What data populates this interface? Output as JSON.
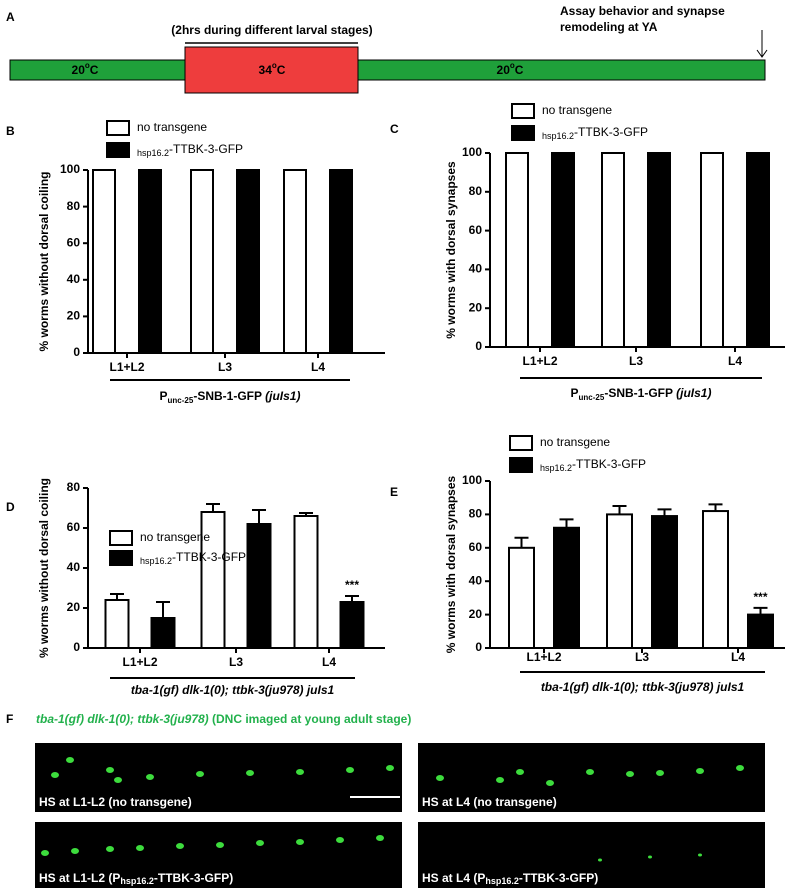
{
  "panel_labels": [
    "A",
    "B",
    "C",
    "D",
    "E",
    "F"
  ],
  "timeline": {
    "note": "(2hrs during different larval stages)",
    "assay": [
      "Assay behavior and synapse",
      "remodeling at YA"
    ],
    "segments": [
      {
        "number": "20",
        "degree": "o",
        "unit": "C",
        "color": "#1fa03a"
      },
      {
        "number": "34",
        "degree": "o",
        "unit": "C",
        "color": "#ee3d3d"
      },
      {
        "number": "20",
        "degree": "o",
        "unit": "C",
        "color": "#1fa03a"
      }
    ]
  },
  "chart_data": [
    {
      "type": "bar",
      "ylabel": "% worms without dorsal coiling",
      "categories": [
        "L1+L2",
        "L3",
        "L4"
      ],
      "series": [
        {
          "name": "no transgene",
          "color": "#ffffff",
          "values": [
            100,
            100,
            100
          ]
        },
        {
          "name": "-TTBK-3-GFP",
          "subscript": "hsp16.2",
          "color": "#000000",
          "values": [
            100,
            100,
            100
          ]
        }
      ],
      "ylim": [
        0,
        100
      ],
      "yticks": [
        0,
        20,
        40,
        60,
        80,
        100
      ],
      "group_label": [
        {
          "text": "P"
        },
        {
          "text": "unc-25",
          "sub": true
        },
        {
          "text": "-SNB-1-GFP "
        },
        {
          "text": "(juIs1)",
          "italic": true
        }
      ]
    },
    {
      "type": "bar",
      "ylabel": "% worms with dorsal  synapses",
      "categories": [
        "L1+L2",
        "L3",
        "L4"
      ],
      "series": [
        {
          "name": "no transgene",
          "color": "#ffffff",
          "values": [
            100,
            100,
            100
          ]
        },
        {
          "name": "-TTBK-3-GFP",
          "subscript": "hsp16.2",
          "color": "#000000",
          "values": [
            100,
            100,
            100
          ]
        }
      ],
      "ylim": [
        0,
        100
      ],
      "yticks": [
        0,
        20,
        40,
        60,
        80,
        100
      ],
      "group_label": [
        {
          "text": "P"
        },
        {
          "text": "unc-25",
          "sub": true
        },
        {
          "text": "-SNB-1-GFP "
        },
        {
          "text": "(juIs1)",
          "italic": true
        }
      ]
    },
    {
      "type": "bar",
      "ylabel": "% worms without dorsal coiling",
      "categories": [
        "L1+L2",
        "L3",
        "L4"
      ],
      "series": [
        {
          "name": "no transgene",
          "color": "#ffffff",
          "values": [
            24,
            68,
            66
          ],
          "errors": [
            3,
            4,
            1.5
          ]
        },
        {
          "name": "-TTBK-3-GFP",
          "subscript": "hsp16.2",
          "color": "#000000",
          "values": [
            15,
            62,
            23
          ],
          "errors": [
            8,
            7,
            3
          ],
          "annotations": [
            null,
            null,
            "***"
          ]
        }
      ],
      "ylim": [
        0,
        80
      ],
      "yticks": [
        0,
        20,
        40,
        60,
        80
      ],
      "group_label": [
        {
          "text": "tba-1(gf) dlk-1(0); ttbk-3(ju978) juIs1",
          "italic": true
        }
      ]
    },
    {
      "type": "bar",
      "ylabel": "% worms with dorsal  synapses",
      "categories": [
        "L1+L2",
        "L3",
        "L4"
      ],
      "series": [
        {
          "name": "no transgene",
          "color": "#ffffff",
          "values": [
            60,
            80,
            82
          ],
          "errors": [
            6,
            5,
            4
          ]
        },
        {
          "name": "-TTBK-3-GFP",
          "subscript": "hsp16.2",
          "color": "#000000",
          "values": [
            72,
            79,
            20
          ],
          "errors": [
            5,
            4,
            4
          ],
          "annotations": [
            null,
            null,
            "***"
          ]
        }
      ],
      "ylim": [
        0,
        100
      ],
      "yticks": [
        0,
        20,
        40,
        60,
        80,
        100
      ],
      "group_label": [
        {
          "text": "tba-1(gf) dlk-1(0); ttbk-3(ju978) juIs1",
          "italic": true
        }
      ]
    }
  ],
  "images": {
    "genotype": "tba-1(gf) dlk-1(0); ttbk-3(ju978)",
    "caption": " (DNC imaged at young adult stage)",
    "panels": [
      {
        "prefix": "HS at L1-L2 (no transgene)"
      },
      {
        "prefix": "HS at L4 (no transgene)"
      },
      {
        "prefix": "HS at L1-L2 (P",
        "sub": "hsp16.2",
        "suffix": "-TTBK-3-GFP)"
      },
      {
        "prefix": "HS at L4 (P",
        "sub": "hsp16.2",
        "suffix": "-TTBK-3-GFP)"
      }
    ]
  }
}
